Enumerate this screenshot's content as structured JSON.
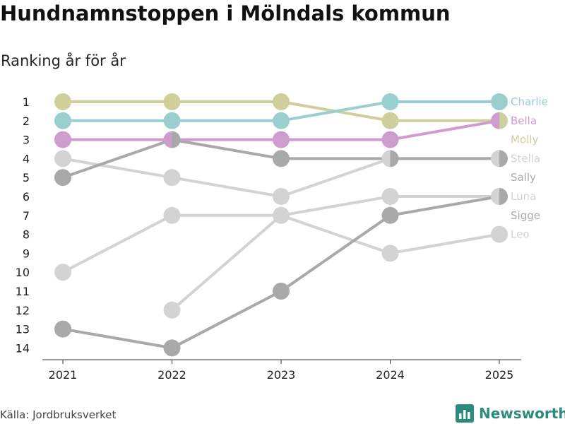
{
  "title": "Hundnamnstoppen i Mölndals kommun",
  "subtitle": "Ranking år för år",
  "source": "Källa: Jordbruksverket",
  "brand": {
    "name": "Newsworthy",
    "color": "#2e8c7e",
    "icon": "bar-chart-icon"
  },
  "chart_data": {
    "type": "line",
    "subtype": "bump",
    "title": "Hundnamnstoppen i Mölndals kommun",
    "subtitle": "Ranking år för år",
    "x": [
      "2021",
      "2022",
      "2023",
      "2024",
      "2025"
    ],
    "y_ticks": [
      "1",
      "2",
      "3",
      "4",
      "5",
      "6",
      "7",
      "8",
      "9",
      "10",
      "11",
      "12",
      "13",
      "14"
    ],
    "ylim": [
      1,
      14
    ],
    "y_reversed": true,
    "series": [
      {
        "name": "Charlie",
        "color": "#9bcfcf",
        "values": [
          2,
          2,
          2,
          1,
          1
        ]
      },
      {
        "name": "Bella",
        "color": "#cf9ccf",
        "values": [
          3,
          3,
          3,
          3,
          2
        ]
      },
      {
        "name": "Molly",
        "color": "#cfcf9c",
        "values": [
          1,
          1,
          1,
          2,
          2
        ]
      },
      {
        "name": "Stella",
        "color": "#d3d3d3",
        "values": [
          4,
          5,
          6,
          4,
          4
        ]
      },
      {
        "name": "Sally",
        "color": "#a9a9a9",
        "values": [
          5,
          3,
          4,
          4,
          4
        ]
      },
      {
        "name": "Luna",
        "color": "#d3d3d3",
        "values": [
          10,
          7,
          7,
          6,
          6
        ]
      },
      {
        "name": "Sigge",
        "color": "#a9a9a9",
        "values": [
          13,
          14,
          11,
          7,
          6
        ]
      },
      {
        "name": "Leo",
        "color": "#d3d3d3",
        "values": [
          null,
          12,
          7,
          9,
          8
        ]
      }
    ]
  }
}
